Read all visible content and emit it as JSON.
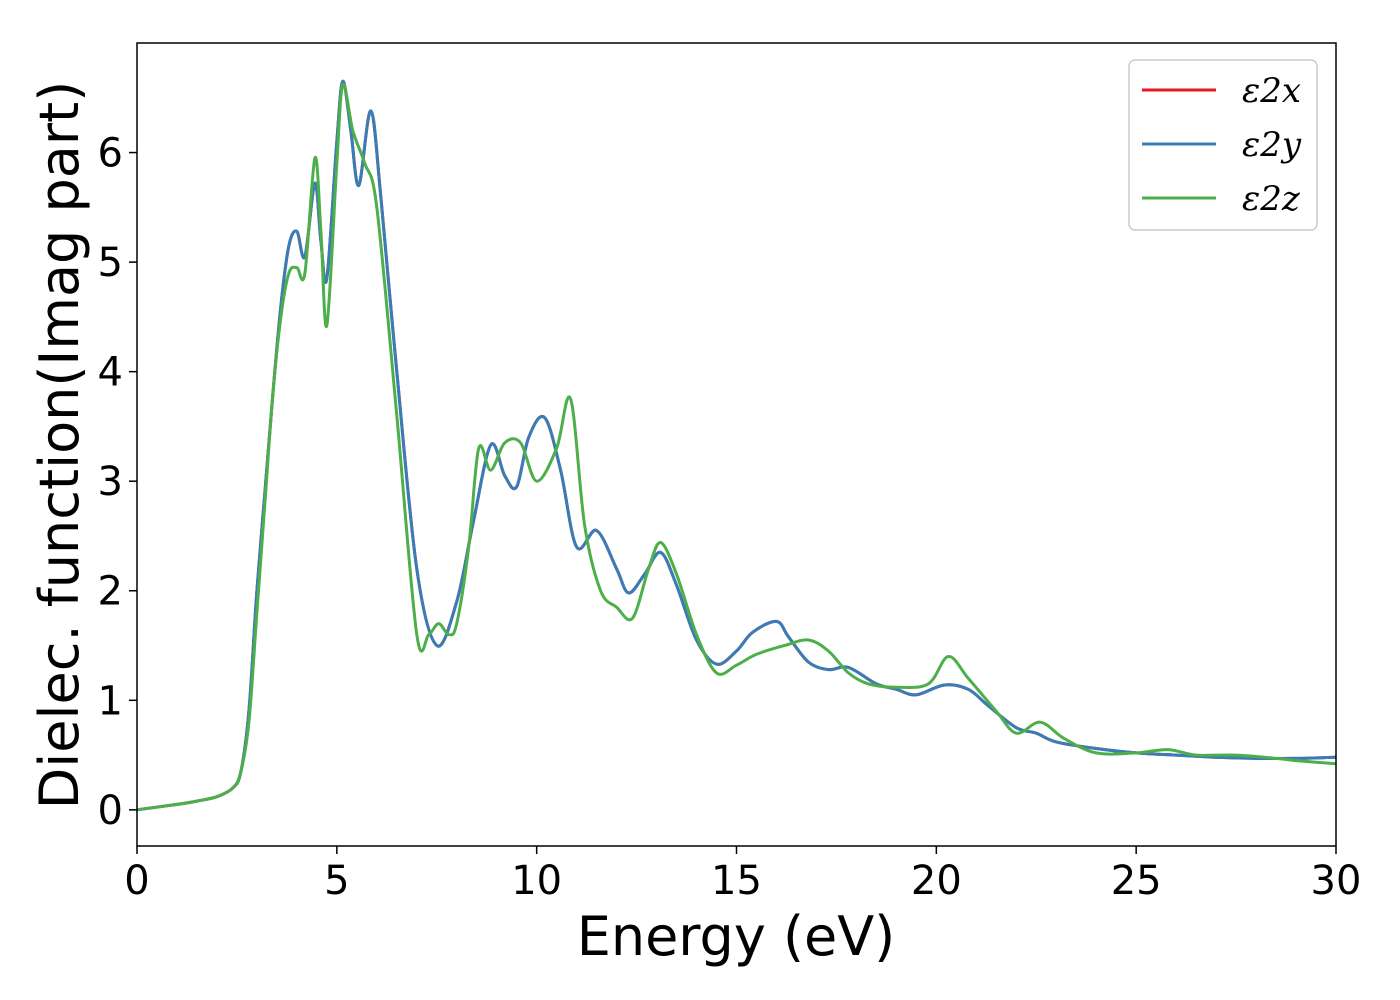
{
  "chart_data": {
    "type": "line",
    "title": "",
    "xlabel": "Energy (eV)",
    "ylabel": "Dielec. function(Imag part)",
    "xlim": [
      0,
      30
    ],
    "ylim": [
      -0.33,
      7.0
    ],
    "xticks": [
      0,
      5,
      10,
      15,
      20,
      25,
      30
    ],
    "yticks": [
      0,
      1,
      2,
      3,
      4,
      5,
      6
    ],
    "grid": false,
    "legend_position": "top-right",
    "series": [
      {
        "name": "ε2x",
        "color": "#e41a1c",
        "x": [
          0,
          1,
          1.5,
          2,
          2.4,
          2.6,
          2.8,
          3.0,
          3.2,
          3.4,
          3.6,
          3.8,
          4.0,
          4.2,
          4.45,
          4.6,
          4.75,
          5.0,
          5.15,
          5.35,
          5.55,
          5.85,
          6.1,
          6.5,
          7.0,
          7.5,
          8.0,
          8.4,
          8.85,
          9.2,
          9.5,
          9.8,
          10.2,
          10.6,
          11.0,
          11.5,
          12.0,
          12.3,
          12.7,
          13.1,
          13.5,
          14.0,
          14.5,
          15.0,
          15.4,
          16.0,
          16.3,
          16.8,
          17.3,
          17.8,
          18.5,
          19.0,
          19.5,
          20.2,
          20.8,
          21.3,
          22.0,
          22.5,
          23.0,
          24.0,
          25.0,
          26.0,
          27.0,
          28.0,
          29.0,
          30.0
        ],
        "values": [
          0,
          0.05,
          0.08,
          0.12,
          0.2,
          0.35,
          0.9,
          2.0,
          2.9,
          3.8,
          4.6,
          5.15,
          5.28,
          5.05,
          5.72,
          5.2,
          4.85,
          6.1,
          6.65,
          6.2,
          5.7,
          6.38,
          5.6,
          4.0,
          2.2,
          1.5,
          1.9,
          2.6,
          3.33,
          3.05,
          2.95,
          3.4,
          3.58,
          3.1,
          2.4,
          2.55,
          2.2,
          1.98,
          2.15,
          2.35,
          2.05,
          1.55,
          1.33,
          1.45,
          1.62,
          1.72,
          1.58,
          1.35,
          1.28,
          1.3,
          1.15,
          1.1,
          1.05,
          1.14,
          1.1,
          0.95,
          0.75,
          0.7,
          0.62,
          0.56,
          0.52,
          0.5,
          0.48,
          0.47,
          0.47,
          0.48
        ]
      },
      {
        "name": "ε2y",
        "color": "#377eb8",
        "x": [
          0,
          1,
          1.5,
          2,
          2.4,
          2.6,
          2.8,
          3.0,
          3.2,
          3.4,
          3.6,
          3.8,
          4.0,
          4.2,
          4.45,
          4.6,
          4.75,
          5.0,
          5.15,
          5.35,
          5.55,
          5.85,
          6.1,
          6.5,
          7.0,
          7.5,
          8.0,
          8.4,
          8.85,
          9.2,
          9.5,
          9.8,
          10.2,
          10.6,
          11.0,
          11.5,
          12.0,
          12.3,
          12.7,
          13.1,
          13.5,
          14.0,
          14.5,
          15.0,
          15.4,
          16.0,
          16.3,
          16.8,
          17.3,
          17.8,
          18.5,
          19.0,
          19.5,
          20.2,
          20.8,
          21.3,
          22.0,
          22.5,
          23.0,
          24.0,
          25.0,
          26.0,
          27.0,
          28.0,
          29.0,
          30.0
        ],
        "values": [
          0,
          0.05,
          0.08,
          0.12,
          0.2,
          0.35,
          0.9,
          2.0,
          2.9,
          3.8,
          4.6,
          5.15,
          5.28,
          5.05,
          5.72,
          5.2,
          4.85,
          6.1,
          6.65,
          6.2,
          5.7,
          6.38,
          5.6,
          4.0,
          2.2,
          1.5,
          1.9,
          2.6,
          3.33,
          3.05,
          2.95,
          3.4,
          3.58,
          3.1,
          2.4,
          2.55,
          2.2,
          1.98,
          2.15,
          2.35,
          2.05,
          1.55,
          1.33,
          1.45,
          1.62,
          1.72,
          1.58,
          1.35,
          1.28,
          1.3,
          1.15,
          1.1,
          1.05,
          1.14,
          1.1,
          0.95,
          0.75,
          0.7,
          0.62,
          0.56,
          0.52,
          0.5,
          0.48,
          0.47,
          0.47,
          0.48
        ]
      },
      {
        "name": "ε2z",
        "color": "#4daf4a",
        "x": [
          0,
          1,
          1.5,
          2,
          2.4,
          2.6,
          2.8,
          3.0,
          3.2,
          3.4,
          3.6,
          3.8,
          4.0,
          4.2,
          4.45,
          4.6,
          4.75,
          5.0,
          5.15,
          5.4,
          5.7,
          6.0,
          6.5,
          7.0,
          7.3,
          7.55,
          7.8,
          8.0,
          8.3,
          8.55,
          8.85,
          9.2,
          9.6,
          10.0,
          10.5,
          10.85,
          11.2,
          11.6,
          12.0,
          12.4,
          12.8,
          13.1,
          13.5,
          14.0,
          14.5,
          15.0,
          15.5,
          16.2,
          16.8,
          17.3,
          17.8,
          18.3,
          19.0,
          19.8,
          20.3,
          20.8,
          21.5,
          22.0,
          22.6,
          23.2,
          24.0,
          25.0,
          25.8,
          26.5,
          27.5,
          28.5,
          29.0,
          30.0
        ],
        "values": [
          0,
          0.05,
          0.08,
          0.12,
          0.2,
          0.35,
          0.8,
          1.8,
          2.8,
          3.8,
          4.5,
          4.9,
          4.95,
          4.9,
          5.95,
          5.3,
          4.42,
          5.9,
          6.62,
          6.2,
          5.9,
          5.5,
          3.6,
          1.6,
          1.6,
          1.7,
          1.6,
          1.7,
          2.4,
          3.3,
          3.1,
          3.35,
          3.35,
          3.0,
          3.3,
          3.75,
          2.6,
          2.0,
          1.85,
          1.75,
          2.2,
          2.44,
          2.15,
          1.6,
          1.25,
          1.32,
          1.42,
          1.5,
          1.55,
          1.45,
          1.25,
          1.15,
          1.12,
          1.15,
          1.4,
          1.2,
          0.9,
          0.7,
          0.8,
          0.65,
          0.52,
          0.52,
          0.55,
          0.5,
          0.5,
          0.47,
          0.45,
          0.42
        ]
      }
    ]
  }
}
